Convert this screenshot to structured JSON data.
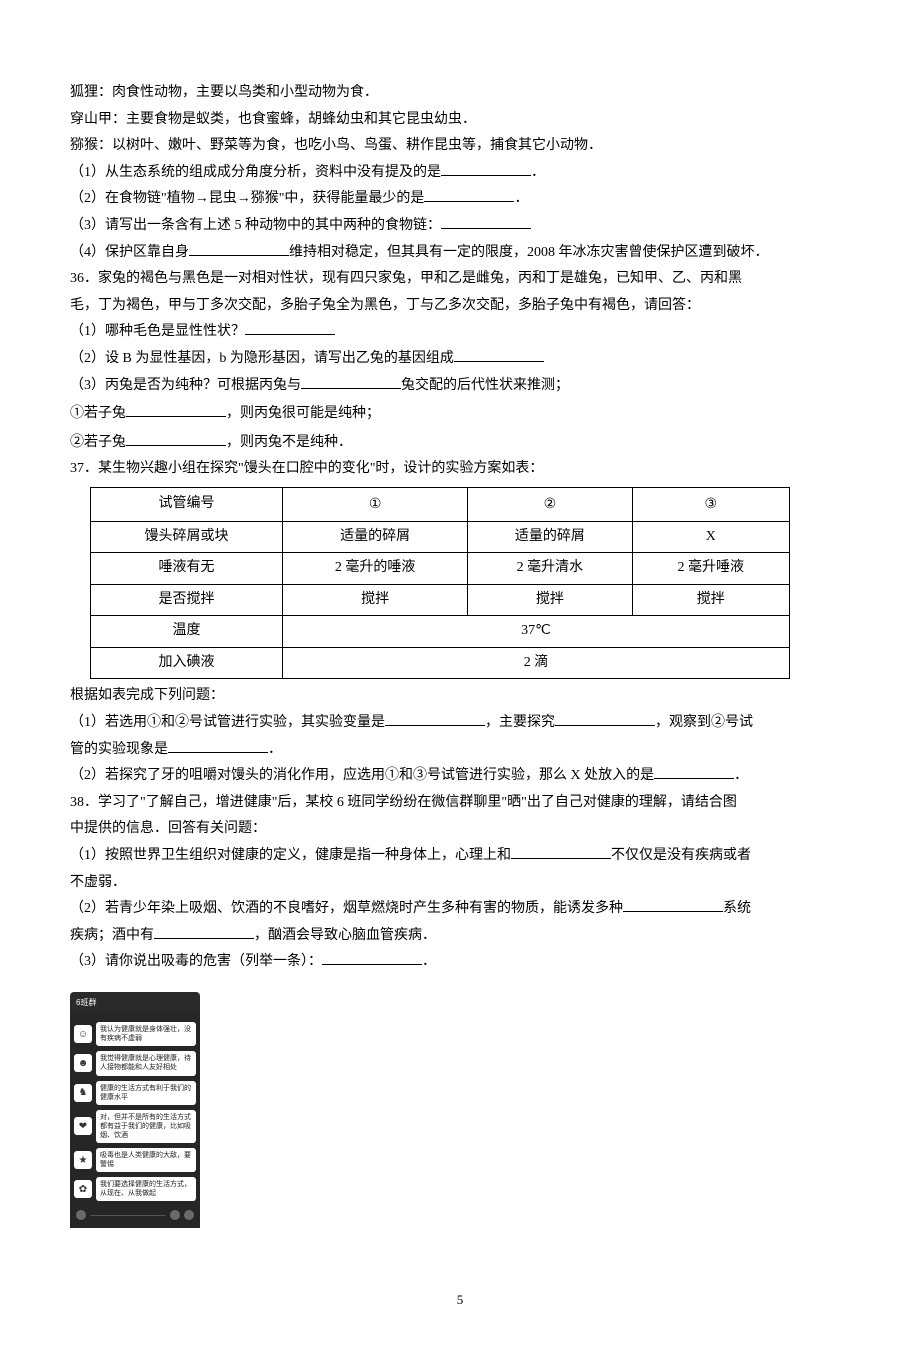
{
  "pre_lines": [
    "狐狸：肉食性动物，主要以鸟类和小型动物为食．",
    "穿山甲：主要食物是蚁类，也食蜜蜂，胡蜂幼虫和其它昆虫幼虫．",
    "猕猴：以树叶、嫩叶、野菜等为食，也吃小鸟、鸟蛋、耕作昆虫等，捕食其它小动物．"
  ],
  "q1": {
    "a": "（1）从生态系统的组成成分角度分析，资料中没有提及的是",
    "b": "（2）在食物链\"植物→昆虫→猕猴\"中，获得能量最少的是",
    "c": "（3）请写出一条含有上述 5 种动物中的其中两种的食物链：",
    "d1": "（4）保护区靠自身",
    "d2": "维持相对稳定，但其具有一定的限度，2008 年冰冻灾害曾使保护区遭到破坏．"
  },
  "q36": {
    "intro1": "36．家兔的褐色与黑色是一对相对性状，现有四只家兔，甲和乙是雌兔，丙和丁是雄兔，已知甲、乙、丙和黑",
    "intro2": "毛，丁为褐色，甲与丁多次交配，多胎子兔全为黑色，丁与乙多次交配，多胎子兔中有褐色，请回答：",
    "a": "（1）哪种毛色是显性性状？",
    "b": "（2）设 B 为显性基因，b 为隐形基因，请写出乙兔的基因组成",
    "c1": "（3）丙兔是否为纯种？可根据丙兔与",
    "c2": "兔交配的后代性状来推测；",
    "d1a": "①若子兔",
    "d1b": "，则丙兔很可能是纯种；",
    "d2a": "②若子兔",
    "d2b": "，则丙兔不是纯种．"
  },
  "q37": {
    "intro": "37．某生物兴趣小组在探究\"馒头在口腔中的变化\"时，设计的实验方案如表：",
    "table": {
      "headers": [
        "试管编号",
        "①",
        "②",
        "③"
      ],
      "rows": [
        [
          "馒头碎屑或块",
          "适量的碎屑",
          "适量的碎屑",
          "X"
        ],
        [
          "唾液有无",
          "2 毫升的唾液",
          "2 毫升清水",
          "2 毫升唾液"
        ],
        [
          "是否搅拌",
          "搅拌",
          "搅拌",
          "搅拌"
        ],
        [
          "温度",
          "37℃"
        ],
        [
          "加入碘液",
          "2 滴"
        ]
      ]
    },
    "after": "根据如表完成下列问题：",
    "a1": "（1）若选用①和②号试管进行实验，其实验变量是",
    "a2": "，主要探究",
    "a3": "，观察到②号试",
    "a4": "管的实验现象是",
    "a5": "．",
    "b1": "（2）若探究了牙的咀嚼对馒头的消化作用，应选用①和③号试管进行实验，那么 X 处放入的是",
    "b2": "．"
  },
  "q38": {
    "intro1": "38．学习了\"了解自己，增进健康\"后，某校 6 班同学纷纷在微信群聊里\"晒\"出了自己对健康的理解，请结合图",
    "intro2": "中提供的信息．回答有关问题：",
    "a1": "（1）按照世界卫生组织对健康的定义，健康是指一种身体上，心理上和",
    "a2": "不仅仅是没有疾病或者",
    "a3": "不虚弱．",
    "b1": "（2）若青少年染上吸烟、饮酒的不良嗜好，烟草燃烧时产生多种有害的物质，能诱发多种",
    "b2": "系统",
    "b3": "疾病；酒中有",
    "b4": "，酗酒会导致心脑血管疾病．",
    "c1": "（3）请你说出吸毒的危害（列举一条）：",
    "c2": "．"
  },
  "chat": {
    "header": "6班群",
    "rows": [
      {
        "icon": "☺",
        "text": "我认为健康就是身体强壮，没有疾病不虚弱"
      },
      {
        "icon": "☻",
        "text": "我觉得健康就是心理健康，待人接物都能和人友好相处"
      },
      {
        "icon": "♞",
        "text": "健康的生活方式有利于我们的健康水平"
      },
      {
        "icon": "❤",
        "text": "对，但并不是所有的生活方式都有益于我们的健康，比如吸烟、饮酒"
      },
      {
        "icon": "★",
        "text": "吸毒也是人类健康的大敌，要警惕"
      },
      {
        "icon": "✿",
        "text": "我们要选择健康的生活方式，从现在、从我做起"
      }
    ]
  },
  "page_number": "5"
}
